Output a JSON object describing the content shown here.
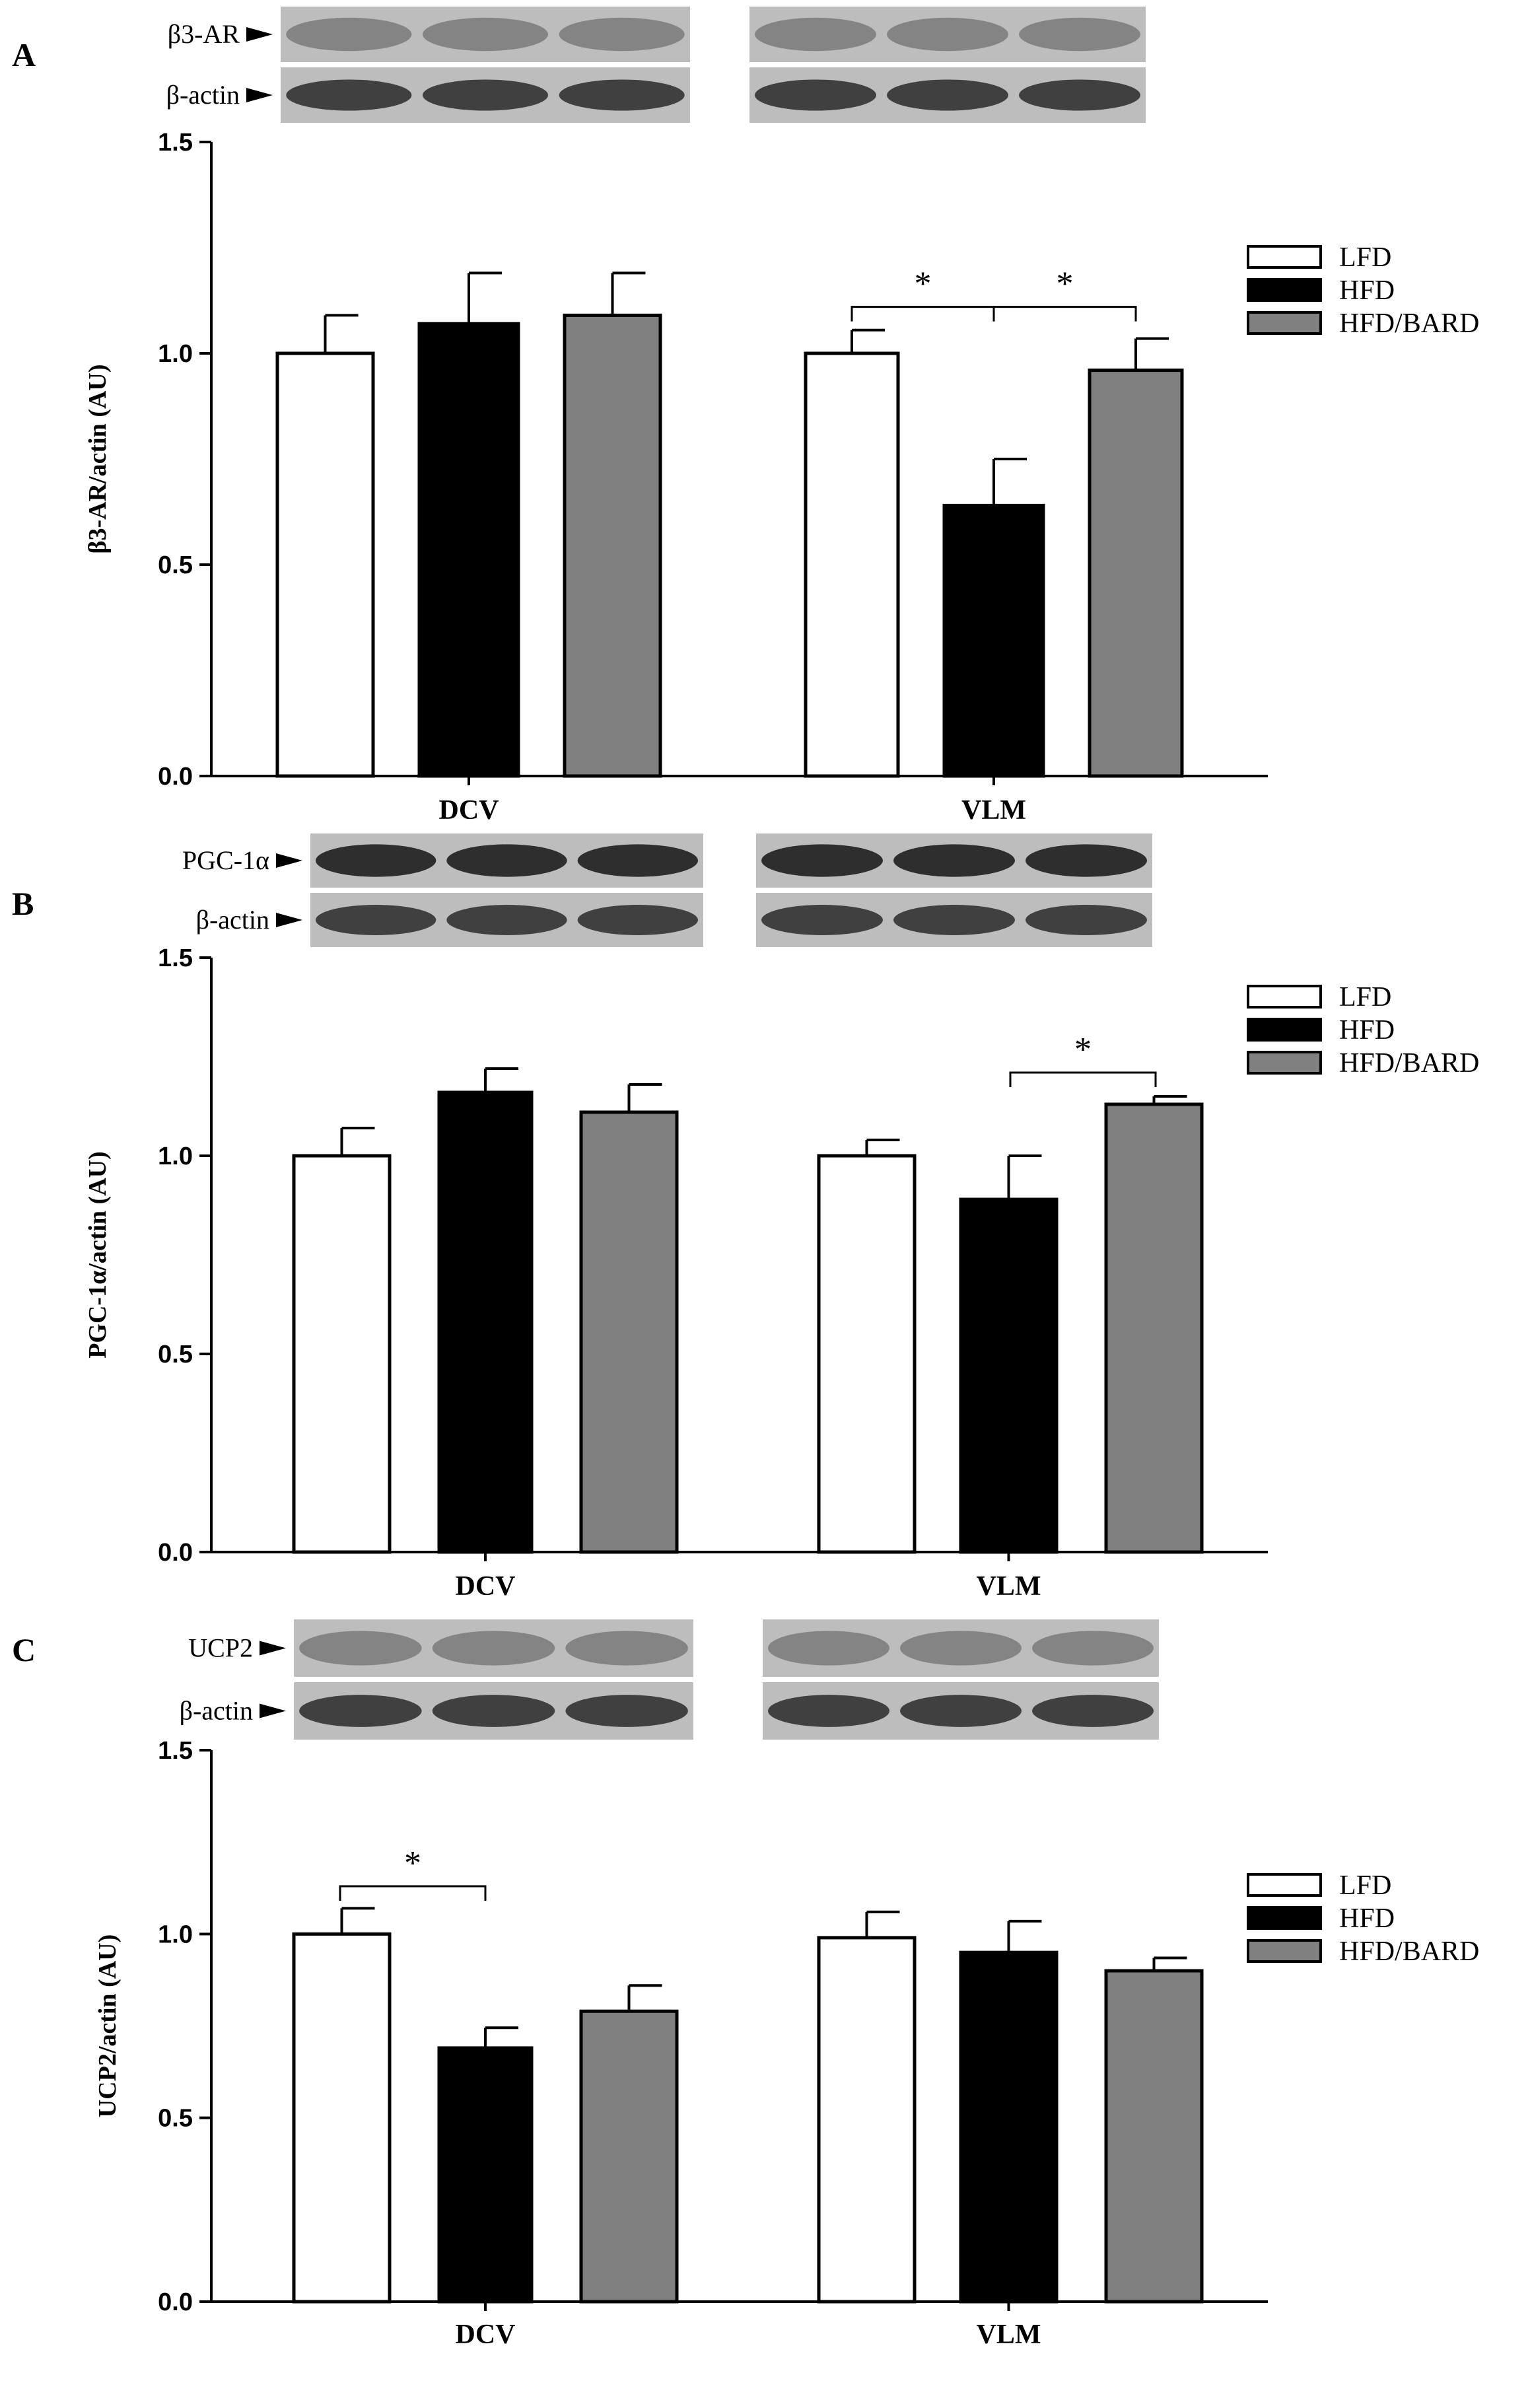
{
  "chart_data": [
    {
      "panel": "A",
      "type": "bar",
      "ylabel": "β3-AR/actin (AU)",
      "ylim": [
        0,
        1.5
      ],
      "yticks": [
        "0.0",
        "0.5",
        "1.0",
        "1.5"
      ],
      "categories": [
        "DCV",
        "VLM"
      ],
      "series": [
        {
          "name": "LFD",
          "color": "#ffffff",
          "values": [
            1.0,
            1.0
          ],
          "errors": [
            0.09,
            0.055
          ]
        },
        {
          "name": "HFD",
          "color": "#000000",
          "values": [
            1.07,
            0.64
          ],
          "errors": [
            0.12,
            0.11
          ]
        },
        {
          "name": "HFD/BARD",
          "color": "#808080",
          "values": [
            1.09,
            0.96
          ],
          "errors": [
            0.1,
            0.075
          ]
        }
      ],
      "significance": [
        "*",
        "*"
      ],
      "blot_labels": [
        "β3-AR",
        "β-actin"
      ]
    },
    {
      "panel": "B",
      "type": "bar",
      "ylabel": "PGC-1α/actin (AU)",
      "ylim": [
        0,
        1.5
      ],
      "yticks": [
        "0.0",
        "0.5",
        "1.0",
        "1.5"
      ],
      "categories": [
        "DCV",
        "VLM"
      ],
      "series": [
        {
          "name": "LFD",
          "color": "#ffffff",
          "values": [
            1.0,
            1.0
          ],
          "errors": [
            0.07,
            0.04
          ]
        },
        {
          "name": "HFD",
          "color": "#000000",
          "values": [
            1.16,
            0.89
          ],
          "errors": [
            0.06,
            0.11
          ]
        },
        {
          "name": "HFD/BARD",
          "color": "#808080",
          "values": [
            1.11,
            1.13
          ],
          "errors": [
            0.07,
            0.02
          ]
        }
      ],
      "significance": [
        "*"
      ],
      "blot_labels": [
        "PGC-1α",
        "β-actin"
      ]
    },
    {
      "panel": "C",
      "type": "bar",
      "ylabel": "UCP2/actin (AU)",
      "ylim": [
        0,
        1.5
      ],
      "yticks": [
        "0.0",
        "0.5",
        "1.0",
        "1.5"
      ],
      "categories": [
        "DCV",
        "VLM"
      ],
      "series": [
        {
          "name": "LFD",
          "color": "#ffffff",
          "values": [
            1.0,
            0.99
          ],
          "errors": [
            0.07,
            0.07
          ]
        },
        {
          "name": "HFD",
          "color": "#000000",
          "values": [
            0.69,
            0.95
          ],
          "errors": [
            0.055,
            0.085
          ]
        },
        {
          "name": "HFD/BARD",
          "color": "#808080",
          "values": [
            0.79,
            0.9
          ],
          "errors": [
            0.07,
            0.035
          ]
        }
      ],
      "significance": [
        "*"
      ],
      "blot_labels": [
        "UCP2",
        "β-actin"
      ]
    }
  ]
}
